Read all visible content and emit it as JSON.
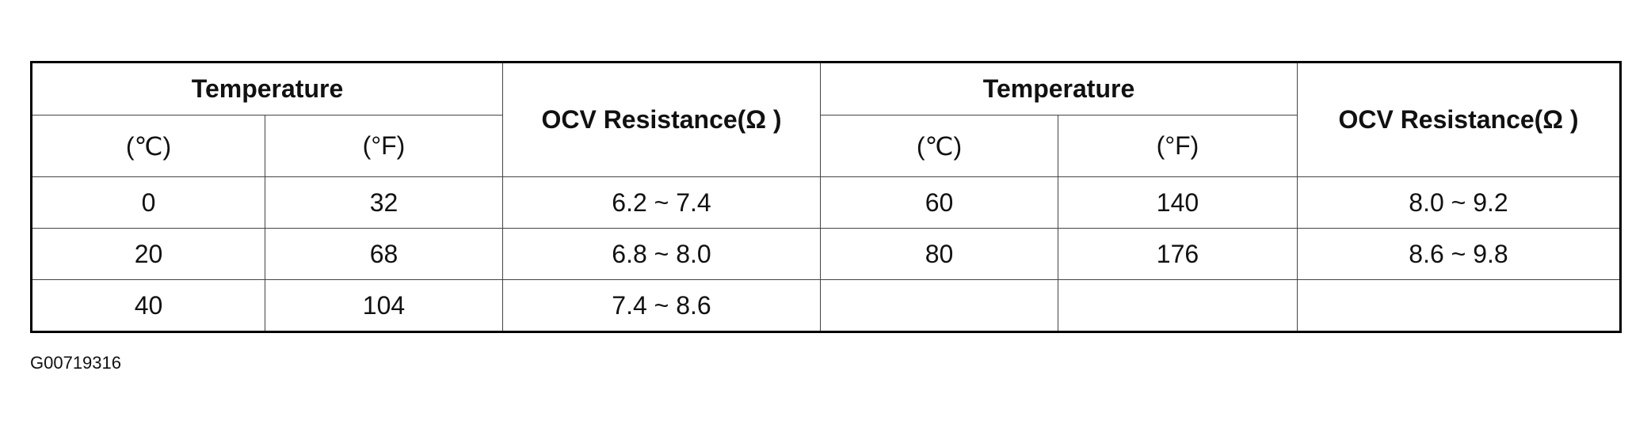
{
  "table": {
    "header": {
      "group_left": "Temperature",
      "resistance_left": "OCV Resistance(Ω )",
      "group_right": "Temperature",
      "resistance_right": "OCV Resistance(Ω )",
      "units": [
        "(℃)",
        "(°F)",
        "(℃)",
        "(°F)"
      ]
    },
    "rows": [
      [
        "0",
        "32",
        "6.2 ~ 7.4",
        "60",
        "140",
        "8.0 ~ 9.2"
      ],
      [
        "20",
        "68",
        "6.8 ~ 8.0",
        "80",
        "176",
        "8.6 ~ 9.8"
      ],
      [
        "40",
        "104",
        "7.4 ~ 8.6",
        null,
        null,
        null
      ]
    ]
  },
  "caption": "G00719316"
}
